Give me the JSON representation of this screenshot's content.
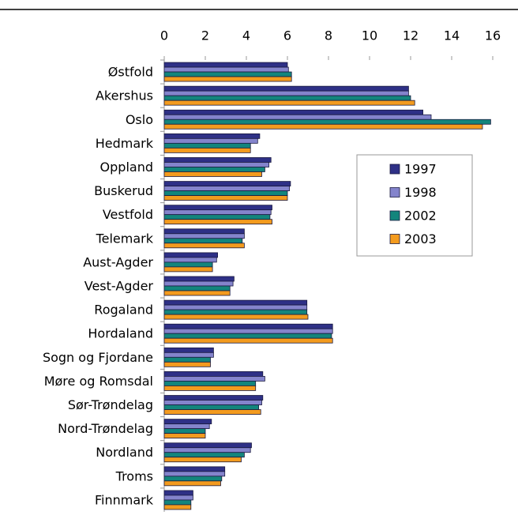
{
  "chart_data": {
    "type": "barh",
    "categories": [
      "Østfold",
      "Akershus",
      "Oslo",
      "Hedmark",
      "Oppland",
      "Buskerud",
      "Vestfold",
      "Telemark",
      "Aust-Agder",
      "Vest-Agder",
      "Rogaland",
      "Hordaland",
      "Sogn og Fjordane",
      "Møre og Romsdal",
      "Sør-Trøndelag",
      "Nord-Trøndelag",
      "Nordland",
      "Troms",
      "Finnmark"
    ],
    "series": [
      {
        "name": "1997",
        "color": "#2e3086",
        "values": [
          6.0,
          11.9,
          12.6,
          4.65,
          5.2,
          6.15,
          5.25,
          3.9,
          2.6,
          3.4,
          6.95,
          8.2,
          2.4,
          4.8,
          4.8,
          2.3,
          4.25,
          2.95,
          1.4
        ]
      },
      {
        "name": "1998",
        "color": "#8484cc",
        "values": [
          6.05,
          11.9,
          13.0,
          4.55,
          5.1,
          6.1,
          5.2,
          3.9,
          2.55,
          3.35,
          6.95,
          8.2,
          2.4,
          4.9,
          4.75,
          2.2,
          4.2,
          2.95,
          1.4
        ]
      },
      {
        "name": "2002",
        "color": "#13857c",
        "values": [
          6.2,
          12.0,
          15.9,
          4.2,
          4.9,
          6.0,
          5.15,
          3.8,
          2.35,
          3.2,
          6.95,
          8.15,
          2.25,
          4.45,
          4.6,
          2.0,
          3.9,
          2.8,
          1.3
        ]
      },
      {
        "name": "2003",
        "color": "#f39b1e",
        "values": [
          6.2,
          12.2,
          15.5,
          4.2,
          4.75,
          6.0,
          5.25,
          3.9,
          2.35,
          3.2,
          7.0,
          8.2,
          2.25,
          4.45,
          4.7,
          2.0,
          3.75,
          2.75,
          1.3
        ]
      }
    ],
    "xlim": [
      0,
      16
    ],
    "xticks": [
      0,
      2,
      4,
      6,
      8,
      10,
      12,
      14,
      16
    ],
    "grid": false,
    "legend": "right"
  }
}
